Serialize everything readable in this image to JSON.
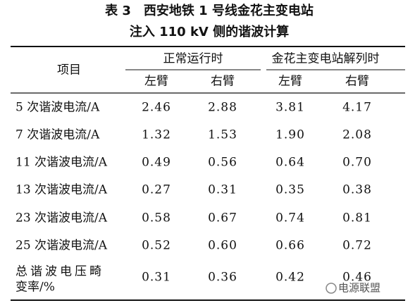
{
  "title": {
    "line1": "表 3　西安地铁 1 号线金花主变电站",
    "line2": "注入 110 kV 侧的谐波计算"
  },
  "table": {
    "item_header": "项目",
    "groups": [
      "正常运行时",
      "金花主变电站解列时"
    ],
    "subheaders": [
      "左臂",
      "右臂",
      "左臂",
      "右臂"
    ],
    "rows": [
      {
        "label": [
          "5 次谐波电流/A"
        ],
        "cells": [
          "2.46",
          "2.88",
          "3.81",
          "4.17"
        ]
      },
      {
        "label": [
          "7 次谐波电流/A"
        ],
        "cells": [
          "1.32",
          "1.53",
          "1.90",
          "2.08"
        ]
      },
      {
        "label": [
          "11 次谐波电流/A"
        ],
        "cells": [
          "0.49",
          "0.56",
          "0.64",
          "0.70"
        ]
      },
      {
        "label": [
          "13 次谐波电流/A"
        ],
        "cells": [
          "0.27",
          "0.31",
          "0.35",
          "0.38"
        ]
      },
      {
        "label": [
          "23 次谐波电流/A"
        ],
        "cells": [
          "0.58",
          "0.67",
          "0.74",
          "0.81"
        ]
      },
      {
        "label": [
          "25 次谐波电流/A"
        ],
        "cells": [
          "0.52",
          "0.60",
          "0.66",
          "0.72"
        ]
      },
      {
        "label": [
          "总谐波电压畸",
          "变率/%"
        ],
        "cells": [
          "0.31",
          "0.36",
          "0.42",
          "0.46"
        ]
      }
    ]
  },
  "watermark": "电源联盟"
}
